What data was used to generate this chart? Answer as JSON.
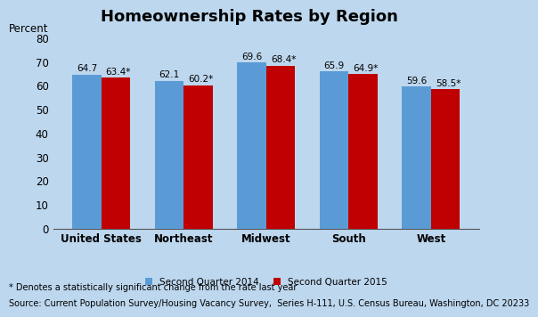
{
  "title": "Homeownership Rates by Region",
  "ylabel": "Percent",
  "categories": [
    "United States",
    "Northeast",
    "Midwest",
    "South",
    "West"
  ],
  "series": [
    {
      "label": "Second Quarter 2014",
      "values": [
        64.7,
        62.1,
        69.6,
        65.9,
        59.6
      ],
      "color": "#5B9BD5"
    },
    {
      "label": "Second Quarter 2015",
      "values": [
        63.4,
        60.2,
        68.4,
        64.9,
        58.5
      ],
      "color": "#C00000"
    }
  ],
  "bar_labels_2014": [
    "64.7",
    "62.1",
    "69.6",
    "65.9",
    "59.6"
  ],
  "bar_labels_2015": [
    "63.4",
    "60.2",
    "68.4",
    "64.9",
    "58.5"
  ],
  "ylim": [
    0,
    80
  ],
  "yticks": [
    0,
    10,
    20,
    30,
    40,
    50,
    60,
    70,
    80
  ],
  "background_color": "#BDD7EE",
  "footnote1": "* Denotes a statistically significant change from the rate last year",
  "footnote2": "Source: Current Population Survey/Housing Vacancy Survey,  Series H-111, U.S. Census Bureau, Washington, DC 20233",
  "title_fontsize": 13,
  "axis_label_fontsize": 8.5,
  "tick_fontsize": 8.5,
  "bar_label_fontsize": 7.5,
  "legend_fontsize": 7.5,
  "footnote_fontsize": 7
}
